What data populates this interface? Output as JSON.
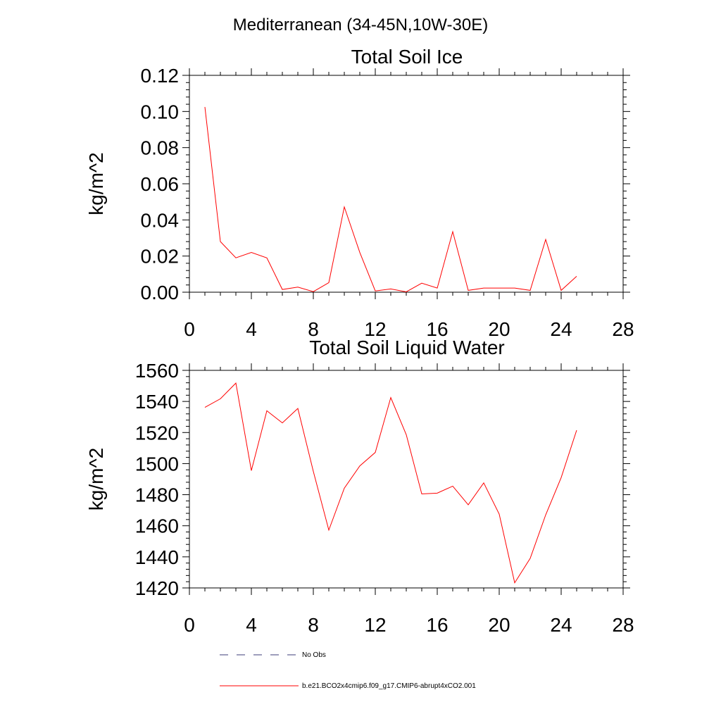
{
  "figure": {
    "title": "Mediterranean (34-45N,10W-30E)"
  },
  "chart_data": [
    {
      "type": "line",
      "title": "Total Soil Ice",
      "xlabel": "",
      "ylabel": "kg/m^2",
      "xlim": [
        0,
        28
      ],
      "ylim": [
        0,
        0.12
      ],
      "x_ticks": [
        "0",
        "4",
        "8",
        "12",
        "16",
        "20",
        "24",
        "28"
      ],
      "y_ticks": [
        "0.00",
        "0.02",
        "0.04",
        "0.06",
        "0.08",
        "0.10",
        "0.12"
      ],
      "grid": false,
      "series": [
        {
          "name": "b.e21.BCO2x4cmip6.f09_g17.CMIP6-abrupt4xCO2.001",
          "color": "#ff0000",
          "x": [
            1,
            2,
            3,
            4,
            5,
            6,
            7,
            8,
            9,
            10,
            11,
            12,
            13,
            14,
            15,
            16,
            17,
            18,
            19,
            20,
            21,
            22,
            23,
            24,
            25
          ],
          "values": [
            0.1025,
            0.028,
            0.019,
            0.022,
            0.019,
            0.0015,
            0.0028,
            0.0003,
            0.0053,
            0.0472,
            0.022,
            0.0007,
            0.0018,
            0.0002,
            0.005,
            0.0023,
            0.0335,
            0.001,
            0.0023,
            0.0023,
            0.0023,
            0.001,
            0.0292,
            0.001,
            0.0088
          ]
        }
      ]
    },
    {
      "type": "line",
      "title": "Total Soil Liquid Water",
      "xlabel": "",
      "ylabel": "kg/m^2",
      "xlim": [
        0,
        28
      ],
      "ylim": [
        1420,
        1560
      ],
      "x_ticks": [
        "0",
        "4",
        "8",
        "12",
        "16",
        "20",
        "24",
        "28"
      ],
      "y_ticks": [
        "1420",
        "1440",
        "1460",
        "1480",
        "1500",
        "1520",
        "1540",
        "1560"
      ],
      "grid": false,
      "series": [
        {
          "name": "b.e21.BCO2x4cmip6.f09_g17.CMIP6-abrupt4xCO2.001",
          "color": "#ff0000",
          "x": [
            1,
            2,
            3,
            4,
            5,
            6,
            7,
            8,
            9,
            10,
            11,
            12,
            13,
            14,
            15,
            16,
            17,
            18,
            19,
            20,
            21,
            22,
            23,
            24,
            25
          ],
          "values": [
            1536.2,
            1541.7,
            1551.8,
            1495.5,
            1534.0,
            1526.2,
            1535.5,
            1495.0,
            1457.2,
            1484.2,
            1498.5,
            1507.2,
            1542.5,
            1518.6,
            1480.5,
            1481.0,
            1485.5,
            1473.5,
            1487.6,
            1467.5,
            1423.3,
            1439.0,
            1467.0,
            1491.0,
            1521.5
          ]
        }
      ]
    }
  ],
  "legend": {
    "placement": "bottom-left",
    "items": [
      {
        "label": "No Obs",
        "color": "#3d3d7a",
        "style": "dashed"
      },
      {
        "label": "b.e21.BCO2x4cmip6.f09_g17.CMIP6-abrupt4xCO2.001",
        "color": "#ff0000",
        "style": "solid"
      }
    ]
  }
}
